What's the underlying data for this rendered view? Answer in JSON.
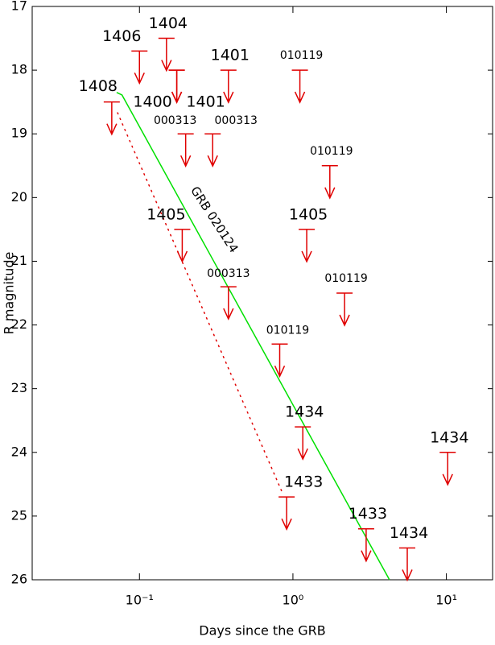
{
  "chart_data": {
    "type": "upper_limits",
    "x_label": "Days since the GRB",
    "y_label": "R magnitude",
    "x_log": true,
    "y_inverted": true,
    "xlim": [
      0.02,
      20
    ],
    "ylim": [
      17,
      26
    ],
    "xticks": [
      {
        "value": 0.1,
        "label": "10⁻¹"
      },
      {
        "value": 1,
        "label": "10⁰"
      },
      {
        "value": 10,
        "label": "10¹"
      }
    ],
    "yticks": [
      17,
      18,
      19,
      20,
      21,
      22,
      23,
      24,
      25,
      26
    ],
    "color": "#e00000",
    "limits": [
      {
        "label": "1408",
        "x": 0.066,
        "y": 18.5
      },
      {
        "label": "1406",
        "x": 0.1,
        "y": 17.7
      },
      {
        "label": "1404",
        "x": 0.15,
        "y": 17.5
      },
      {
        "label": "1400",
        "x": 0.175,
        "y": 18.0
      },
      {
        "label": "1401",
        "x": 0.175,
        "y": 18.0
      },
      {
        "label": "1401",
        "x": 0.38,
        "y": 18.0
      },
      {
        "label": "010119",
        "x": 1.11,
        "y": 18.0
      },
      {
        "label": "000313",
        "x": 0.2,
        "y": 19.0
      },
      {
        "label": "000313",
        "x": 0.3,
        "y": 19.0
      },
      {
        "label": "010119",
        "x": 1.74,
        "y": 19.5
      },
      {
        "label": "1405",
        "x": 0.19,
        "y": 20.5
      },
      {
        "label": "1405",
        "x": 1.23,
        "y": 20.5
      },
      {
        "label": "000313",
        "x": 0.38,
        "y": 21.4
      },
      {
        "label": "010119",
        "x": 2.17,
        "y": 21.5
      },
      {
        "label": "010119",
        "x": 0.82,
        "y": 22.3
      },
      {
        "label": "1434",
        "x": 1.16,
        "y": 23.6
      },
      {
        "label": "1434",
        "x": 10.2,
        "y": 24.0
      },
      {
        "label": "1433",
        "x": 0.91,
        "y": 24.7
      },
      {
        "label": "1433",
        "x": 3.0,
        "y": 25.2
      },
      {
        "label": "1434",
        "x": 5.56,
        "y": 25.5
      }
    ],
    "lines": [
      {
        "x": [
          0.071,
          0.077,
          4.26
        ],
        "y": [
          18.35,
          18.39,
          26
        ],
        "color": "#00e000",
        "style": "solid"
      },
      {
        "x": [
          0.072,
          0.845
        ],
        "y": [
          18.67,
          24.61
        ],
        "color": "#e00000",
        "style": "dotted"
      }
    ],
    "annotation": "GRB 020124"
  }
}
